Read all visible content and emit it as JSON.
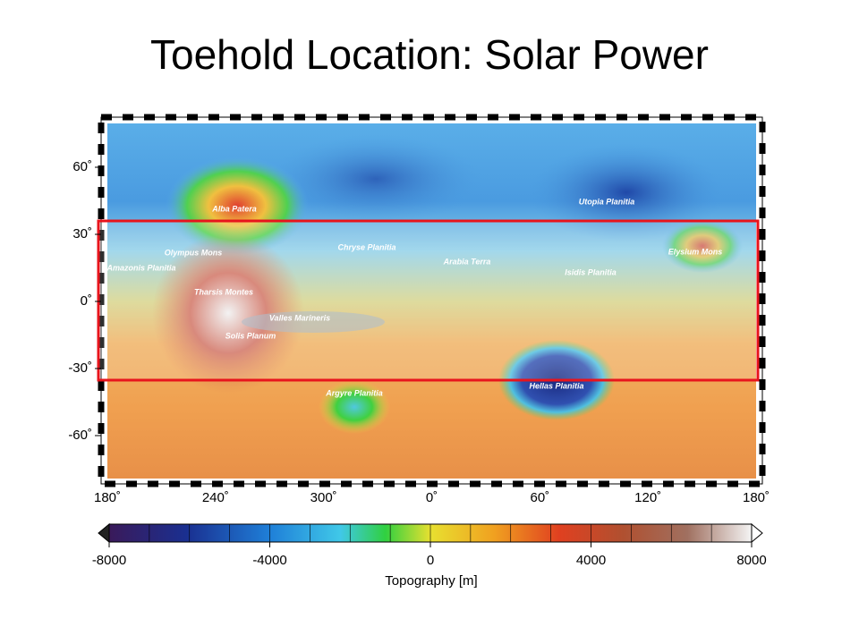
{
  "title": "Toehold Location: Solar Power",
  "map": {
    "lat_ticks": [
      {
        "value": 60,
        "label": "60˚"
      },
      {
        "value": 30,
        "label": "30˚"
      },
      {
        "value": 0,
        "label": "0˚"
      },
      {
        "value": -30,
        "label": "-30˚"
      },
      {
        "value": -60,
        "label": "-60˚"
      }
    ],
    "lon_ticks": [
      "180˚",
      "240˚",
      "300˚",
      "0˚",
      "60˚",
      "120˚",
      "180˚"
    ],
    "regions": [
      "Alba Patera",
      "Utopia Planitia",
      "Olympus Mons",
      "Chryse Planitia",
      "Arabia Terra",
      "Elysium Mons",
      "Amazonis Planitia",
      "Isidis Planitia",
      "Tharsis Montes",
      "Valles Marineris",
      "Solis Planum",
      "Hellas Planitia",
      "Argyre Planitia"
    ]
  },
  "colorbar": {
    "lim": [
      -8000,
      8000
    ],
    "ticks": [
      -8000,
      -4000,
      0,
      4000,
      8000
    ],
    "label": "Topography [m]"
  }
}
